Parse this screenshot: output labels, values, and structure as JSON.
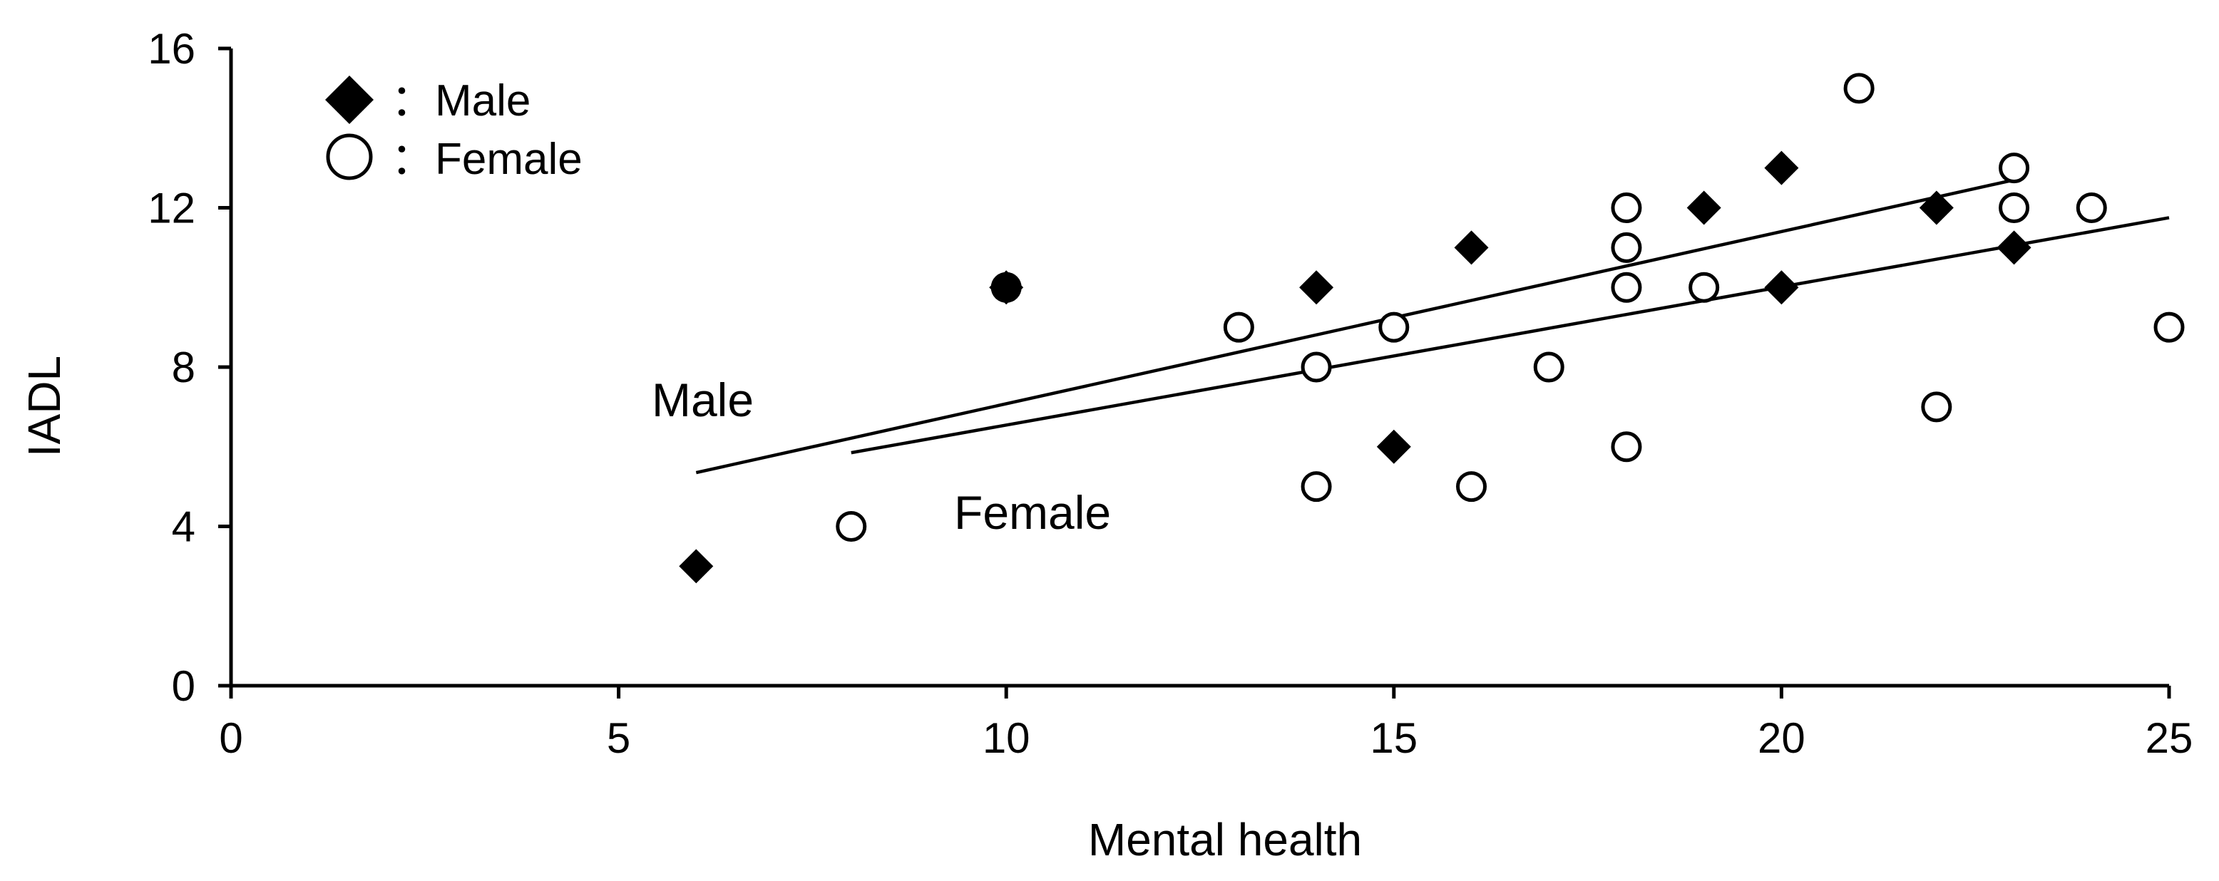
{
  "chart_data": {
    "type": "scatter",
    "xlabel": "Mental health",
    "ylabel": "IADL",
    "xlim": [
      0,
      25
    ],
    "ylim": [
      0,
      16
    ],
    "xticks": [
      0,
      5,
      10,
      15,
      20,
      25
    ],
    "yticks": [
      0,
      4,
      8,
      12,
      16
    ],
    "grid": false,
    "legend_position": "top-left",
    "series": [
      {
        "name": "Male",
        "legend_label": "：Male",
        "marker": "filled-diamond",
        "color": "#000000",
        "points": [
          {
            "x": 6,
            "y": 3
          },
          {
            "x": 10,
            "y": 10
          },
          {
            "x": 14,
            "y": 10
          },
          {
            "x": 15,
            "y": 6
          },
          {
            "x": 16,
            "y": 11
          },
          {
            "x": 19,
            "y": 12
          },
          {
            "x": 20,
            "y": 13
          },
          {
            "x": 20,
            "y": 10
          },
          {
            "x": 22,
            "y": 12
          },
          {
            "x": 23,
            "y": 11
          }
        ],
        "trendline": {
          "x": [
            6,
            23
          ],
          "y": [
            5.35,
            12.7
          ]
        },
        "annotation": "Male"
      },
      {
        "name": "Female",
        "legend_label": "：Female",
        "marker": "open-circle",
        "color": "#000000",
        "points": [
          {
            "x": 8,
            "y": 4
          },
          {
            "x": 10,
            "y": 10
          },
          {
            "x": 13,
            "y": 9
          },
          {
            "x": 14,
            "y": 8
          },
          {
            "x": 14,
            "y": 5
          },
          {
            "x": 15,
            "y": 9
          },
          {
            "x": 16,
            "y": 5
          },
          {
            "x": 17,
            "y": 8
          },
          {
            "x": 18,
            "y": 12
          },
          {
            "x": 18,
            "y": 11
          },
          {
            "x": 18,
            "y": 10
          },
          {
            "x": 18,
            "y": 6
          },
          {
            "x": 19,
            "y": 10
          },
          {
            "x": 21,
            "y": 15
          },
          {
            "x": 22,
            "y": 7
          },
          {
            "x": 23,
            "y": 13
          },
          {
            "x": 23,
            "y": 12
          },
          {
            "x": 24,
            "y": 12
          },
          {
            "x": 25,
            "y": 9
          }
        ],
        "trendline": {
          "x": [
            8,
            25
          ],
          "y": [
            5.85,
            11.75
          ]
        },
        "annotation": "Female"
      }
    ]
  }
}
